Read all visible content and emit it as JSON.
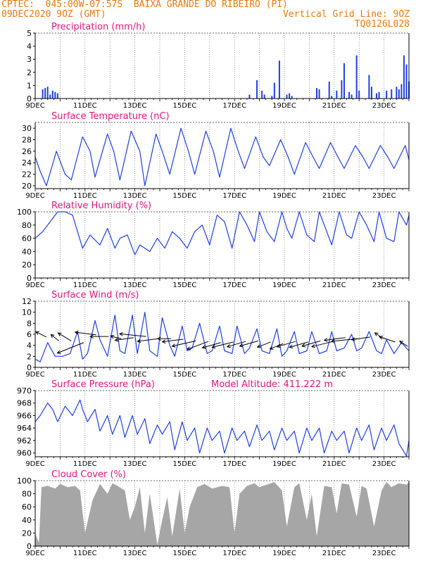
{
  "header": {
    "line1": "CPTEC:  045:00W-07:57S  BAIXA GRANDE DO RIBEIRO (PI)",
    "line2_left": "09DEC2020 9OZ (GMT)",
    "line2_right": "Vertical Grid Line: 9OZ",
    "line3_right": "TQ0126L028",
    "altitude": "Model Altitude: 411.222 m"
  },
  "colors": {
    "header": "#e87a10",
    "title": "#e0157f",
    "series": "#1f3fe8",
    "cloud": "#a6a6a6",
    "arrow": "#000000"
  },
  "x_axis": {
    "ticks": [
      "9DEC",
      "11DEC",
      "13DEC",
      "15DEC",
      "17DEC",
      "19DEC",
      "21DEC",
      "23DEC"
    ],
    "range_days": [
      9,
      24
    ]
  },
  "chart_data": [
    {
      "type": "bar",
      "title": "Precipitation (mm/h)",
      "ylim": [
        0,
        5
      ],
      "yticks": [
        0,
        1,
        2,
        3,
        4,
        5
      ],
      "x": [
        9.3,
        9.4,
        9.5,
        9.6,
        9.7,
        9.8,
        9.9,
        17.6,
        17.9,
        18.1,
        18.2,
        18.5,
        18.6,
        18.8,
        19.1,
        19.2,
        19.3,
        20.3,
        20.4,
        20.8,
        20.9,
        21.1,
        21.3,
        21.4,
        21.6,
        21.7,
        21.9,
        22.0,
        22.4,
        22.5,
        22.7,
        22.8,
        23.1,
        23.3,
        23.5,
        23.6,
        23.7,
        23.8,
        23.9,
        24.0
      ],
      "values": [
        0.7,
        0.8,
        0.9,
        0.3,
        0.6,
        0.5,
        0.4,
        0.3,
        1.4,
        0.6,
        0.3,
        0.2,
        1.2,
        2.9,
        0.3,
        0.4,
        0.2,
        0.8,
        0.7,
        1.3,
        0.2,
        0.6,
        1.4,
        2.7,
        0.5,
        0.3,
        3.3,
        0.6,
        1.8,
        0.9,
        0.4,
        0.5,
        0.6,
        0.7,
        0.9,
        0.7,
        1.1,
        3.3,
        2.6,
        1.3
      ]
    },
    {
      "type": "line",
      "title": "Surface Temperature (nC)",
      "ylim": [
        19.5,
        31
      ],
      "yticks": [
        20,
        22,
        24,
        26,
        28,
        30
      ],
      "x": [
        9.0,
        9.2,
        9.45,
        9.85,
        10.2,
        10.45,
        10.9,
        11.2,
        11.4,
        11.9,
        12.15,
        12.4,
        12.85,
        13.2,
        13.4,
        13.85,
        14.1,
        14.4,
        14.85,
        15.15,
        15.4,
        15.85,
        16.15,
        16.4,
        16.85,
        17.15,
        17.4,
        17.85,
        18.15,
        18.4,
        18.85,
        19.15,
        19.4,
        19.85,
        20.15,
        20.4,
        20.85,
        21.15,
        21.4,
        21.85,
        22.15,
        22.4,
        22.85,
        23.15,
        23.4,
        23.85,
        24.0
      ],
      "values": [
        25,
        22.5,
        20,
        26,
        22,
        21,
        28.5,
        26,
        21.5,
        29,
        26,
        21,
        29.5,
        26,
        20,
        29,
        26,
        22,
        30,
        26,
        22,
        29.5,
        26,
        21.5,
        30,
        26,
        23,
        28.5,
        25,
        23.5,
        28,
        25,
        22,
        27.5,
        25,
        23,
        27.5,
        25,
        23,
        27,
        25,
        23,
        27,
        25,
        23,
        27,
        24.5
      ]
    },
    {
      "type": "line",
      "title": "Relative Humidity (%)",
      "ylim": [
        0,
        100
      ],
      "yticks": [
        0,
        20,
        40,
        60,
        80,
        100
      ],
      "x": [
        9.0,
        9.3,
        9.6,
        9.9,
        10.2,
        10.5,
        10.9,
        11.2,
        11.6,
        11.9,
        12.2,
        12.4,
        12.7,
        13.0,
        13.2,
        13.6,
        13.9,
        14.2,
        14.5,
        14.8,
        15.1,
        15.4,
        15.7,
        16.0,
        16.3,
        16.6,
        16.9,
        17.2,
        17.5,
        17.8,
        18.0,
        18.3,
        18.6,
        18.9,
        19.1,
        19.3,
        19.6,
        19.9,
        20.2,
        20.4,
        20.7,
        20.9,
        21.2,
        21.5,
        21.7,
        22.0,
        22.3,
        22.6,
        22.8,
        23.1,
        23.4,
        23.6,
        23.9,
        24.0
      ],
      "values": [
        60,
        70,
        85,
        100,
        100,
        95,
        45,
        65,
        50,
        75,
        45,
        60,
        65,
        35,
        50,
        40,
        60,
        45,
        70,
        60,
        45,
        70,
        80,
        50,
        95,
        85,
        45,
        100,
        80,
        55,
        100,
        70,
        55,
        100,
        75,
        60,
        100,
        65,
        55,
        100,
        70,
        50,
        100,
        65,
        60,
        100,
        80,
        55,
        100,
        60,
        55,
        100,
        80,
        95
      ]
    },
    {
      "type": "line",
      "title": "Surface Wind (m/s)",
      "ylim": [
        0,
        12
      ],
      "yticks": [
        0,
        2,
        4,
        6,
        8,
        10,
        12
      ],
      "x": [
        9.0,
        9.2,
        9.5,
        9.8,
        10.1,
        10.4,
        10.7,
        10.9,
        11.1,
        11.4,
        11.6,
        11.9,
        12.2,
        12.4,
        12.6,
        12.9,
        13.1,
        13.4,
        13.6,
        13.9,
        14.1,
        14.4,
        14.6,
        14.9,
        15.1,
        15.3,
        15.6,
        15.9,
        16.1,
        16.4,
        16.6,
        16.9,
        17.1,
        17.4,
        17.6,
        17.9,
        18.1,
        18.4,
        18.7,
        18.9,
        19.1,
        19.4,
        19.6,
        19.9,
        20.1,
        20.4,
        20.7,
        20.9,
        21.1,
        21.4,
        21.7,
        21.9,
        22.1,
        22.4,
        22.7,
        22.9,
        23.1,
        23.4,
        23.7,
        24.0
      ],
      "values": [
        1.5,
        1,
        4.5,
        2,
        2,
        2.5,
        6.5,
        1.5,
        2.5,
        8.5,
        5,
        2,
        9.5,
        3,
        2.5,
        9.5,
        2.5,
        10,
        3,
        2,
        9,
        4,
        2,
        7.5,
        3,
        3.5,
        8,
        2.5,
        3,
        7.5,
        3,
        2.5,
        7.5,
        2.5,
        3.5,
        7,
        3,
        2.5,
        7,
        2,
        3,
        6.5,
        2.5,
        3,
        6.5,
        2.5,
        3,
        6.5,
        3,
        3.5,
        6,
        3,
        3.5,
        6.5,
        3,
        2.5,
        5,
        2.5,
        4.5,
        3
      ],
      "arrows": {
        "x": [
          9.45,
          9.95,
          10.45,
          10.95,
          11.45,
          11.95,
          12.45,
          12.95,
          13.45,
          13.95,
          14.45,
          14.95,
          15.45,
          15.95,
          16.45,
          16.95,
          17.45,
          17.95,
          18.45,
          18.95,
          19.45,
          19.95,
          20.45,
          20.95,
          21.45,
          21.95,
          22.45,
          22.95,
          23.45,
          23.95
        ],
        "y": [
          5.5,
          4.8,
          4.8,
          4.5,
          5.9,
          5.6,
          5.2,
          5.4,
          5.6,
          5.2,
          5.2,
          5.1,
          4.8,
          4.7,
          4.5,
          4.6,
          4.7,
          4.8,
          4.6,
          4.3,
          4.7,
          4.6,
          4.8,
          4.7,
          5.4,
          5.2,
          5.5,
          5.3,
          4.6,
          3.8
        ],
        "u": [
          -2,
          -1.5,
          -2.5,
          -5,
          -4,
          -3.5,
          -2,
          -3.5,
          -5,
          -4,
          -2.5,
          -4,
          -4.5,
          -4,
          -3.5,
          -4,
          -3.5,
          -3.5,
          -2.5,
          -2.5,
          -3.5,
          -3.5,
          -3.5,
          -4,
          -4,
          -5,
          -3.5,
          -1.5,
          -3,
          -1.5
        ],
        "v": [
          1,
          1.2,
          1.5,
          -2,
          0.5,
          0,
          0.5,
          -0.5,
          0.5,
          -0.5,
          0,
          -0.5,
          -1,
          -1.5,
          -1,
          -1,
          -1,
          -1,
          -1,
          -1,
          -1,
          -1,
          -1,
          -1,
          -0.5,
          -0.5,
          -0.5,
          1,
          1,
          1
        ]
      }
    },
    {
      "type": "line",
      "title": "Surface Pressure (hPa)",
      "ylim": [
        959.4,
        970
      ],
      "yticks": [
        960,
        962,
        964,
        966,
        968,
        970
      ],
      "x": [
        9.0,
        9.2,
        9.5,
        9.7,
        9.9,
        10.2,
        10.5,
        10.8,
        10.9,
        11.1,
        11.4,
        11.6,
        11.9,
        12.1,
        12.4,
        12.6,
        12.9,
        13.1,
        13.4,
        13.6,
        13.9,
        14.1,
        14.4,
        14.6,
        14.9,
        15.1,
        15.4,
        15.6,
        15.9,
        16.1,
        16.4,
        16.6,
        16.9,
        17.1,
        17.4,
        17.6,
        17.9,
        18.1,
        18.4,
        18.6,
        18.9,
        19.1,
        19.4,
        19.6,
        19.9,
        20.1,
        20.4,
        20.6,
        20.9,
        21.1,
        21.4,
        21.6,
        21.9,
        22.1,
        22.4,
        22.6,
        22.9,
        23.1,
        23.4,
        23.6,
        23.9,
        24.0
      ],
      "values": [
        965,
        966,
        968,
        967,
        965,
        967.5,
        966,
        968.5,
        967,
        965,
        967,
        963.5,
        966,
        963,
        966,
        962.5,
        966,
        963,
        965.5,
        961.5,
        964.5,
        963,
        965,
        960.5,
        965,
        962,
        964,
        960,
        964,
        962,
        963.5,
        960,
        964,
        962,
        963.5,
        961,
        964.5,
        962,
        963.5,
        960.5,
        964,
        962,
        963.5,
        960,
        964,
        962,
        964,
        960,
        963.5,
        962,
        963.5,
        960,
        964,
        962,
        964.5,
        960.5,
        964,
        962,
        964.5,
        961.5,
        959.5,
        962
      ]
    },
    {
      "type": "area",
      "title": "Cloud Cover (%)",
      "ylim": [
        0,
        100
      ],
      "yticks": [
        0,
        20,
        40,
        60,
        80,
        100
      ],
      "x": [
        9.0,
        9.15,
        9.25,
        9.5,
        9.8,
        10.0,
        10.3,
        10.6,
        10.8,
        11.0,
        11.3,
        11.6,
        11.9,
        12.1,
        12.3,
        12.6,
        12.8,
        13.0,
        13.2,
        13.4,
        13.6,
        13.9,
        14.1,
        14.3,
        14.5,
        14.8,
        15.0,
        15.2,
        15.5,
        15.8,
        16.1,
        16.5,
        16.8,
        17.0,
        17.2,
        17.5,
        17.8,
        18.0,
        18.3,
        18.6,
        18.9,
        19.1,
        19.4,
        19.6,
        19.9,
        20.1,
        20.3,
        20.6,
        20.9,
        21.1,
        21.3,
        21.6,
        21.9,
        22.1,
        22.3,
        22.6,
        22.9,
        23.1,
        23.3,
        23.6,
        23.9,
        24.0
      ],
      "values": [
        20,
        5,
        90,
        92,
        88,
        95,
        90,
        92,
        85,
        20,
        70,
        95,
        80,
        96,
        92,
        85,
        40,
        60,
        90,
        20,
        80,
        2,
        40,
        75,
        15,
        88,
        20,
        60,
        90,
        95,
        88,
        92,
        90,
        20,
        80,
        92,
        96,
        90,
        94,
        98,
        85,
        30,
        90,
        96,
        40,
        80,
        15,
        92,
        90,
        50,
        96,
        94,
        45,
        92,
        88,
        30,
        85,
        98,
        90,
        96,
        94,
        98
      ]
    }
  ],
  "panels_extra": {
    "pressure_altitude_label": "Model Altitude: 411.222 m"
  }
}
